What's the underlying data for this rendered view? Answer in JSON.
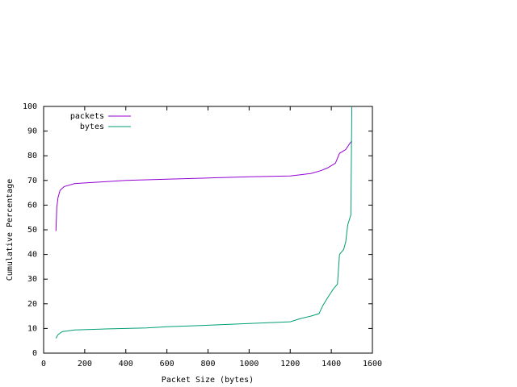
{
  "chart_data": {
    "type": "line",
    "xlabel": "Packet Size (bytes)",
    "ylabel": "Cumulative Percentage",
    "xlim": [
      0,
      1600
    ],
    "xticks": [
      0,
      200,
      400,
      600,
      800,
      1000,
      1200,
      1400,
      1600
    ],
    "ylim": [
      0,
      100
    ],
    "yticks": [
      0,
      10,
      20,
      30,
      40,
      50,
      60,
      70,
      80,
      90,
      100
    ],
    "legend": "top-left",
    "series": [
      {
        "name": "packets",
        "color": "#9400d3",
        "x": [
          60,
          64,
          70,
          80,
          100,
          150,
          200,
          300,
          400,
          600,
          800,
          1000,
          1200,
          1250,
          1300,
          1350,
          1380,
          1420,
          1440,
          1470,
          1490,
          1500
        ],
        "values": [
          49.5,
          59,
          63,
          66,
          67.5,
          68.7,
          69,
          69.5,
          70,
          70.5,
          71,
          71.5,
          71.8,
          72.3,
          72.8,
          74,
          75,
          77,
          81,
          82.5,
          85,
          86
        ]
      },
      {
        "name": "bytes",
        "color": "#009e73",
        "x": [
          60,
          70,
          90,
          150,
          300,
          500,
          600,
          800,
          1000,
          1200,
          1250,
          1300,
          1340,
          1360,
          1390,
          1410,
          1430,
          1440,
          1460,
          1470,
          1480,
          1495,
          1500
        ],
        "values": [
          6,
          7.5,
          8.7,
          9.4,
          9.8,
          10.2,
          10.7,
          11.3,
          12,
          12.7,
          14,
          15,
          16,
          19.5,
          23.5,
          26,
          28,
          40,
          42,
          45,
          52,
          56,
          100
        ]
      }
    ]
  }
}
